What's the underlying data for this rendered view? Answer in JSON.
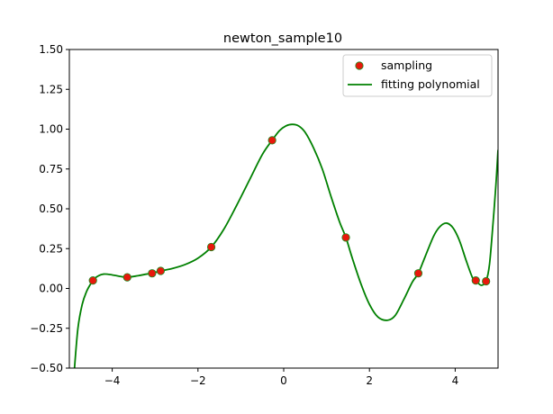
{
  "chart_data": {
    "type": "scatter",
    "title": "newton_sample10",
    "xlabel": "",
    "ylabel": "",
    "xlim": [
      -5,
      5
    ],
    "ylim": [
      -0.5,
      1.5
    ],
    "xticks": [
      -4,
      -2,
      0,
      2,
      4
    ],
    "xtick_labels": [
      "−4",
      "−2",
      "0",
      "2",
      "4"
    ],
    "yticks": [
      -0.5,
      -0.25,
      0.0,
      0.25,
      0.5,
      0.75,
      1.0,
      1.25,
      1.5
    ],
    "ytick_labels": [
      "−0.50",
      "−0.25",
      "0.00",
      "0.25",
      "0.50",
      "0.75",
      "1.00",
      "1.25",
      "1.50"
    ],
    "grid": false,
    "legend_position": "top-right",
    "series": [
      {
        "name": "sampling",
        "kind": "points",
        "color": "#e8180c",
        "edge_color": "#1e8a1e",
        "points": [
          [
            -4.45,
            0.05
          ],
          [
            -3.65,
            0.07
          ],
          [
            -3.07,
            0.095
          ],
          [
            -2.87,
            0.11
          ],
          [
            -1.69,
            0.26
          ],
          [
            -0.27,
            0.93
          ],
          [
            1.45,
            0.32
          ],
          [
            3.14,
            0.095
          ],
          [
            4.48,
            0.05
          ],
          [
            4.72,
            0.045
          ]
        ]
      },
      {
        "name": "fitting polynomial",
        "kind": "line",
        "color": "#008000",
        "points": [
          [
            -4.88,
            -0.5
          ],
          [
            -4.8,
            -0.25
          ],
          [
            -4.7,
            -0.1
          ],
          [
            -4.6,
            -0.02
          ],
          [
            -4.5,
            0.03
          ],
          [
            -4.45,
            0.05
          ],
          [
            -4.35,
            0.075
          ],
          [
            -4.2,
            0.09
          ],
          [
            -4.0,
            0.085
          ],
          [
            -3.8,
            0.075
          ],
          [
            -3.65,
            0.07
          ],
          [
            -3.4,
            0.08
          ],
          [
            -3.2,
            0.09
          ],
          [
            -3.07,
            0.095
          ],
          [
            -2.87,
            0.11
          ],
          [
            -2.6,
            0.125
          ],
          [
            -2.3,
            0.15
          ],
          [
            -2.0,
            0.19
          ],
          [
            -1.69,
            0.26
          ],
          [
            -1.4,
            0.37
          ],
          [
            -1.1,
            0.52
          ],
          [
            -0.8,
            0.68
          ],
          [
            -0.5,
            0.84
          ],
          [
            -0.27,
            0.93
          ],
          [
            -0.1,
            0.99
          ],
          [
            0.05,
            1.02
          ],
          [
            0.2,
            1.03
          ],
          [
            0.35,
            1.02
          ],
          [
            0.5,
            0.98
          ],
          [
            0.7,
            0.88
          ],
          [
            0.9,
            0.75
          ],
          [
            1.1,
            0.58
          ],
          [
            1.3,
            0.42
          ],
          [
            1.45,
            0.32
          ],
          [
            1.6,
            0.19
          ],
          [
            1.8,
            0.03
          ],
          [
            2.0,
            -0.1
          ],
          [
            2.2,
            -0.18
          ],
          [
            2.42,
            -0.2
          ],
          [
            2.6,
            -0.17
          ],
          [
            2.8,
            -0.07
          ],
          [
            3.0,
            0.04
          ],
          [
            3.14,
            0.095
          ],
          [
            3.3,
            0.2
          ],
          [
            3.5,
            0.33
          ],
          [
            3.65,
            0.39
          ],
          [
            3.8,
            0.41
          ],
          [
            3.95,
            0.38
          ],
          [
            4.1,
            0.3
          ],
          [
            4.25,
            0.18
          ],
          [
            4.4,
            0.07
          ],
          [
            4.48,
            0.05
          ],
          [
            4.55,
            0.03
          ],
          [
            4.62,
            0.02
          ],
          [
            4.72,
            0.045
          ],
          [
            4.8,
            0.15
          ],
          [
            4.88,
            0.4
          ],
          [
            4.95,
            0.65
          ],
          [
            5.0,
            0.87
          ]
        ]
      }
    ]
  }
}
